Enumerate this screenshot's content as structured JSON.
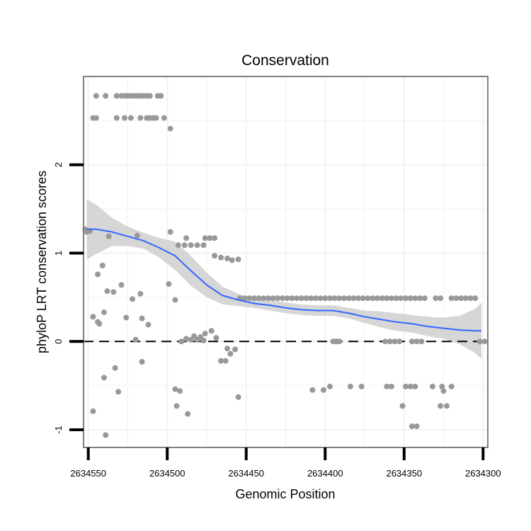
{
  "chart_data": {
    "type": "scatter",
    "title": "Conservation",
    "xlabel": "Genomic Position",
    "ylabel": "phyloP LRT conservation scores",
    "xlim": [
      2634553,
      2634297
    ],
    "x_reversed": true,
    "ylim": [
      -1.2,
      3.0
    ],
    "grid": true,
    "x_ticks": [
      2634550,
      2634500,
      2634450,
      2634400,
      2634350,
      2634300
    ],
    "x_tick_labels": [
      "2634550",
      "2634500",
      "2634450",
      "2634400",
      "2634350",
      "2634300"
    ],
    "y_ticks": [
      -1,
      0,
      1,
      2
    ],
    "y_tick_labels": [
      "-1",
      "0",
      "1",
      "2"
    ],
    "reference_line": {
      "y": 0,
      "style": "dashed",
      "color": "#000000"
    },
    "colors": {
      "points": "#999999",
      "smooth": "#3366ff",
      "ribbon": "#cccccc",
      "frame": "#7f7f7f",
      "grid": "#f2f2f2"
    },
    "points": [
      {
        "x": 2634545,
        "y": 2.78
      },
      {
        "x": 2634539,
        "y": 2.78
      },
      {
        "x": 2634532,
        "y": 2.78
      },
      {
        "x": 2634529,
        "y": 2.78
      },
      {
        "x": 2634527,
        "y": 2.78
      },
      {
        "x": 2634525,
        "y": 2.78
      },
      {
        "x": 2634523,
        "y": 2.78
      },
      {
        "x": 2634521,
        "y": 2.78
      },
      {
        "x": 2634519,
        "y": 2.78
      },
      {
        "x": 2634517,
        "y": 2.78
      },
      {
        "x": 2634515,
        "y": 2.78
      },
      {
        "x": 2634513,
        "y": 2.78
      },
      {
        "x": 2634511,
        "y": 2.78
      },
      {
        "x": 2634506,
        "y": 2.78
      },
      {
        "x": 2634504,
        "y": 2.78
      },
      {
        "x": 2634547,
        "y": 2.53
      },
      {
        "x": 2634545,
        "y": 2.53
      },
      {
        "x": 2634532,
        "y": 2.53
      },
      {
        "x": 2634527,
        "y": 2.53
      },
      {
        "x": 2634523,
        "y": 2.53
      },
      {
        "x": 2634517,
        "y": 2.53
      },
      {
        "x": 2634513,
        "y": 2.53
      },
      {
        "x": 2634511,
        "y": 2.53
      },
      {
        "x": 2634509,
        "y": 2.53
      },
      {
        "x": 2634507,
        "y": 2.53
      },
      {
        "x": 2634502,
        "y": 2.53
      },
      {
        "x": 2634498,
        "y": 2.41
      },
      {
        "x": 2634552,
        "y": 1.27
      },
      {
        "x": 2634551,
        "y": 1.24
      },
      {
        "x": 2634549,
        "y": 1.25
      },
      {
        "x": 2634537,
        "y": 1.19
      },
      {
        "x": 2634519,
        "y": 1.2
      },
      {
        "x": 2634498,
        "y": 1.24
      },
      {
        "x": 2634488,
        "y": 1.17
      },
      {
        "x": 2634476,
        "y": 1.17
      },
      {
        "x": 2634473,
        "y": 1.17
      },
      {
        "x": 2634470,
        "y": 1.17
      },
      {
        "x": 2634493,
        "y": 1.09
      },
      {
        "x": 2634489,
        "y": 1.09
      },
      {
        "x": 2634485,
        "y": 1.09
      },
      {
        "x": 2634481,
        "y": 1.09
      },
      {
        "x": 2634477,
        "y": 1.09
      },
      {
        "x": 2634470,
        "y": 0.97
      },
      {
        "x": 2634466,
        "y": 0.95
      },
      {
        "x": 2634462,
        "y": 0.94
      },
      {
        "x": 2634459,
        "y": 0.92
      },
      {
        "x": 2634455,
        "y": 0.93
      },
      {
        "x": 2634541,
        "y": 0.86
      },
      {
        "x": 2634544,
        "y": 0.76
      },
      {
        "x": 2634499,
        "y": 0.65
      },
      {
        "x": 2634538,
        "y": 0.57
      },
      {
        "x": 2634529,
        "y": 0.64
      },
      {
        "x": 2634534,
        "y": 0.56
      },
      {
        "x": 2634517,
        "y": 0.54
      },
      {
        "x": 2634522,
        "y": 0.48
      },
      {
        "x": 2634495,
        "y": 0.47
      },
      {
        "x": 2634540,
        "y": 0.33
      },
      {
        "x": 2634547,
        "y": 0.28
      },
      {
        "x": 2634526,
        "y": 0.27
      },
      {
        "x": 2634516,
        "y": 0.26
      },
      {
        "x": 2634544,
        "y": 0.22
      },
      {
        "x": 2634543,
        "y": 0.2
      },
      {
        "x": 2634512,
        "y": 0.19
      },
      {
        "x": 2634520,
        "y": 0.02
      },
      {
        "x": 2634491,
        "y": 0.0
      },
      {
        "x": 2634488,
        "y": 0.03
      },
      {
        "x": 2634485,
        "y": 0.02
      },
      {
        "x": 2634483,
        "y": 0.06
      },
      {
        "x": 2634479,
        "y": 0.05
      },
      {
        "x": 2634476,
        "y": 0.09
      },
      {
        "x": 2634472,
        "y": 0.12
      },
      {
        "x": 2634477,
        "y": 0.01
      },
      {
        "x": 2634469,
        "y": 0.04
      },
      {
        "x": 2634481,
        "y": 0.02
      },
      {
        "x": 2634462,
        "y": -0.08
      },
      {
        "x": 2634460,
        "y": -0.14
      },
      {
        "x": 2634457,
        "y": -0.09
      },
      {
        "x": 2634466,
        "y": -0.22
      },
      {
        "x": 2634463,
        "y": -0.22
      },
      {
        "x": 2634516,
        "y": -0.23
      },
      {
        "x": 2634533,
        "y": -0.3
      },
      {
        "x": 2634540,
        "y": -0.41
      },
      {
        "x": 2634495,
        "y": -0.54
      },
      {
        "x": 2634492,
        "y": -0.56
      },
      {
        "x": 2634531,
        "y": -0.57
      },
      {
        "x": 2634455,
        "y": -0.63
      },
      {
        "x": 2634494,
        "y": -0.73
      },
      {
        "x": 2634547,
        "y": -0.79
      },
      {
        "x": 2634487,
        "y": -0.82
      },
      {
        "x": 2634539,
        "y": -1.06
      },
      {
        "x": 2634454,
        "y": 0.49
      },
      {
        "x": 2634451,
        "y": 0.49
      },
      {
        "x": 2634448,
        "y": 0.49
      },
      {
        "x": 2634445,
        "y": 0.49
      },
      {
        "x": 2634442,
        "y": 0.49
      },
      {
        "x": 2634439,
        "y": 0.49
      },
      {
        "x": 2634436,
        "y": 0.49
      },
      {
        "x": 2634433,
        "y": 0.49
      },
      {
        "x": 2634430,
        "y": 0.49
      },
      {
        "x": 2634427,
        "y": 0.49
      },
      {
        "x": 2634424,
        "y": 0.49
      },
      {
        "x": 2634421,
        "y": 0.49
      },
      {
        "x": 2634418,
        "y": 0.49
      },
      {
        "x": 2634415,
        "y": 0.49
      },
      {
        "x": 2634412,
        "y": 0.49
      },
      {
        "x": 2634409,
        "y": 0.49
      },
      {
        "x": 2634406,
        "y": 0.49
      },
      {
        "x": 2634403,
        "y": 0.49
      },
      {
        "x": 2634400,
        "y": 0.49
      },
      {
        "x": 2634397,
        "y": 0.49
      },
      {
        "x": 2634394,
        "y": 0.49
      },
      {
        "x": 2634391,
        "y": 0.49
      },
      {
        "x": 2634388,
        "y": 0.49
      },
      {
        "x": 2634385,
        "y": 0.49
      },
      {
        "x": 2634382,
        "y": 0.49
      },
      {
        "x": 2634379,
        "y": 0.49
      },
      {
        "x": 2634376,
        "y": 0.49
      },
      {
        "x": 2634373,
        "y": 0.49
      },
      {
        "x": 2634370,
        "y": 0.49
      },
      {
        "x": 2634367,
        "y": 0.49
      },
      {
        "x": 2634364,
        "y": 0.49
      },
      {
        "x": 2634361,
        "y": 0.49
      },
      {
        "x": 2634358,
        "y": 0.49
      },
      {
        "x": 2634355,
        "y": 0.49
      },
      {
        "x": 2634352,
        "y": 0.49
      },
      {
        "x": 2634349,
        "y": 0.49
      },
      {
        "x": 2634346,
        "y": 0.49
      },
      {
        "x": 2634343,
        "y": 0.49
      },
      {
        "x": 2634340,
        "y": 0.49
      },
      {
        "x": 2634337,
        "y": 0.49
      },
      {
        "x": 2634330,
        "y": 0.49
      },
      {
        "x": 2634327,
        "y": 0.49
      },
      {
        "x": 2634320,
        "y": 0.49
      },
      {
        "x": 2634317,
        "y": 0.49
      },
      {
        "x": 2634314,
        "y": 0.49
      },
      {
        "x": 2634311,
        "y": 0.49
      },
      {
        "x": 2634308,
        "y": 0.49
      },
      {
        "x": 2634305,
        "y": 0.49
      },
      {
        "x": 2634395,
        "y": 0.0
      },
      {
        "x": 2634393,
        "y": 0.0
      },
      {
        "x": 2634391,
        "y": 0.0
      },
      {
        "x": 2634362,
        "y": 0.0
      },
      {
        "x": 2634359,
        "y": 0.0
      },
      {
        "x": 2634356,
        "y": 0.0
      },
      {
        "x": 2634353,
        "y": 0.0
      },
      {
        "x": 2634345,
        "y": 0.0
      },
      {
        "x": 2634342,
        "y": 0.0
      },
      {
        "x": 2634339,
        "y": 0.0
      },
      {
        "x": 2634302,
        "y": 0.0
      },
      {
        "x": 2634299,
        "y": 0.0
      },
      {
        "x": 2634408,
        "y": -0.55
      },
      {
        "x": 2634401,
        "y": -0.55
      },
      {
        "x": 2634397,
        "y": -0.51
      },
      {
        "x": 2634384,
        "y": -0.51
      },
      {
        "x": 2634377,
        "y": -0.51
      },
      {
        "x": 2634361,
        "y": -0.51
      },
      {
        "x": 2634358,
        "y": -0.51
      },
      {
        "x": 2634349,
        "y": -0.51
      },
      {
        "x": 2634346,
        "y": -0.51
      },
      {
        "x": 2634343,
        "y": -0.51
      },
      {
        "x": 2634332,
        "y": -0.51
      },
      {
        "x": 2634326,
        "y": -0.51
      },
      {
        "x": 2634320,
        "y": -0.51
      },
      {
        "x": 2634325,
        "y": -0.56
      },
      {
        "x": 2634351,
        "y": -0.73
      },
      {
        "x": 2634327,
        "y": -0.73
      },
      {
        "x": 2634323,
        "y": -0.73
      },
      {
        "x": 2634345,
        "y": -0.96
      },
      {
        "x": 2634342,
        "y": -0.96
      }
    ],
    "smooth_line": {
      "x": [
        2634551,
        2634545,
        2634535,
        2634525,
        2634515,
        2634505,
        2634495,
        2634485,
        2634475,
        2634465,
        2634455,
        2634450,
        2634445,
        2634435,
        2634425,
        2634415,
        2634405,
        2634395,
        2634385,
        2634375,
        2634365,
        2634355,
        2634345,
        2634335,
        2634325,
        2634315,
        2634305,
        2634301
      ],
      "y": [
        1.27,
        1.27,
        1.24,
        1.19,
        1.14,
        1.06,
        0.97,
        0.8,
        0.64,
        0.52,
        0.47,
        0.45,
        0.43,
        0.41,
        0.38,
        0.36,
        0.35,
        0.35,
        0.32,
        0.28,
        0.25,
        0.22,
        0.2,
        0.17,
        0.15,
        0.13,
        0.12,
        0.12
      ],
      "ymin": [
        0.93,
        0.99,
        1.08,
        1.08,
        1.05,
        0.95,
        0.81,
        0.63,
        0.5,
        0.42,
        0.4,
        0.39,
        0.38,
        0.35,
        0.32,
        0.3,
        0.29,
        0.29,
        0.26,
        0.21,
        0.16,
        0.12,
        0.1,
        0.06,
        0.03,
        -0.03,
        -0.13,
        -0.2
      ],
      "ymax": [
        1.61,
        1.55,
        1.4,
        1.3,
        1.23,
        1.17,
        1.13,
        0.97,
        0.78,
        0.62,
        0.54,
        0.51,
        0.48,
        0.47,
        0.44,
        0.42,
        0.41,
        0.41,
        0.38,
        0.35,
        0.34,
        0.32,
        0.3,
        0.28,
        0.27,
        0.29,
        0.37,
        0.44
      ]
    }
  }
}
